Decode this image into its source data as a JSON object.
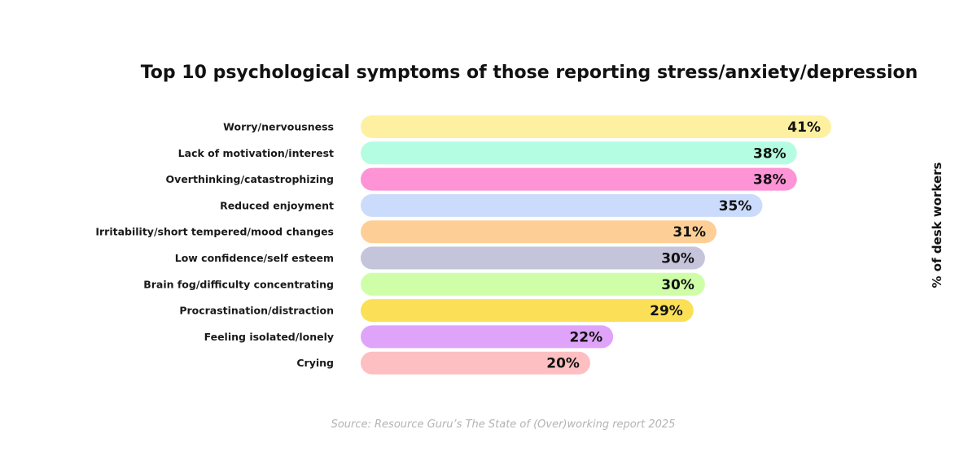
{
  "chart_data": {
    "type": "bar",
    "orientation": "horizontal",
    "title": "Top 10 psychological symptoms of those reporting stress/anxiety/depression",
    "ylabel": "% of desk workers",
    "source": "Source: Resource Guru’s The State of (Over)working report 2025",
    "value_suffix": "%",
    "xlim": [
      0,
      41
    ],
    "categories": [
      "Worry/nervousness",
      "Lack of motivation/interest",
      "Overthinking/catastrophizing",
      "Reduced enjoyment",
      "Irritability/short tempered/mood changes",
      "Low confidence/self esteem",
      "Brain fog/difficulty concentrating",
      "Procrastination/distraction",
      "Feeling isolated/lonely",
      "Crying"
    ],
    "values": [
      41,
      38,
      38,
      35,
      31,
      30,
      30,
      29,
      22,
      20
    ],
    "colors": [
      "#fdf0a0",
      "#b4fde2",
      "#fe93d6",
      "#cadbfb",
      "#fdcf96",
      "#c4c5db",
      "#cffea8",
      "#fbe057",
      "#dfa4fa",
      "#fdbfc1"
    ],
    "grid": false,
    "legend": "none"
  }
}
